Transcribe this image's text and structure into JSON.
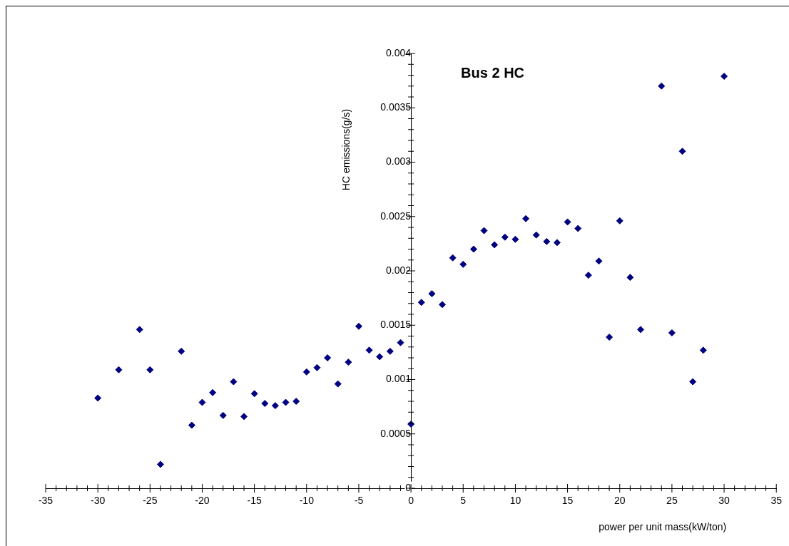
{
  "chart_data": {
    "type": "scatter",
    "title": "Bus 2 HC",
    "xlabel": "power per unit mass(kW/ton)",
    "ylabel": "HC emissions(g/s)",
    "x": [
      -30,
      -28,
      -26,
      -25,
      -24,
      -22,
      -21,
      -20,
      -19,
      -18,
      -17,
      -16,
      -15,
      -14,
      -13,
      -12,
      -11,
      -10,
      -9,
      -8,
      -7,
      -6,
      -5,
      -4,
      -3,
      -2,
      -1,
      0,
      1,
      2,
      3,
      4,
      5,
      6,
      7,
      8,
      9,
      10,
      11,
      12,
      13,
      14,
      15,
      16,
      17,
      18,
      19,
      20,
      21,
      22,
      24,
      25,
      26,
      27,
      28,
      30
    ],
    "values": [
      0.00083,
      0.00109,
      0.00146,
      0.00109,
      0.00022,
      0.00126,
      0.00058,
      0.00079,
      0.00088,
      0.00067,
      0.00098,
      0.00066,
      0.00087,
      0.00078,
      0.00076,
      0.00079,
      0.0008,
      0.00107,
      0.00111,
      0.0012,
      0.00096,
      0.00116,
      0.00149,
      0.00127,
      0.00121,
      0.00126,
      0.00134,
      0.00059,
      0.00171,
      0.00179,
      0.00169,
      0.00212,
      0.00206,
      0.0022,
      0.00237,
      0.00224,
      0.00231,
      0.00229,
      0.00248,
      0.00233,
      0.00227,
      0.00226,
      0.00245,
      0.00239,
      0.00196,
      0.00209,
      0.00139,
      0.00246,
      0.00194,
      0.00146,
      0.0037,
      0.00143,
      0.0031,
      0.00098,
      0.00127,
      0.00379
    ],
    "color": "#000080",
    "marker": "diamond",
    "grid": false,
    "legend": false,
    "xlim": [
      -35,
      35
    ],
    "xticks": [
      -35,
      -30,
      -25,
      -20,
      -15,
      -10,
      -5,
      0,
      5,
      10,
      15,
      20,
      25,
      30,
      35
    ],
    "ylim": [
      0,
      0.004
    ],
    "yticks": [
      0,
      0.0005,
      0.001,
      0.0015,
      0.002,
      0.0025,
      0.003,
      0.0035,
      0.004
    ]
  }
}
